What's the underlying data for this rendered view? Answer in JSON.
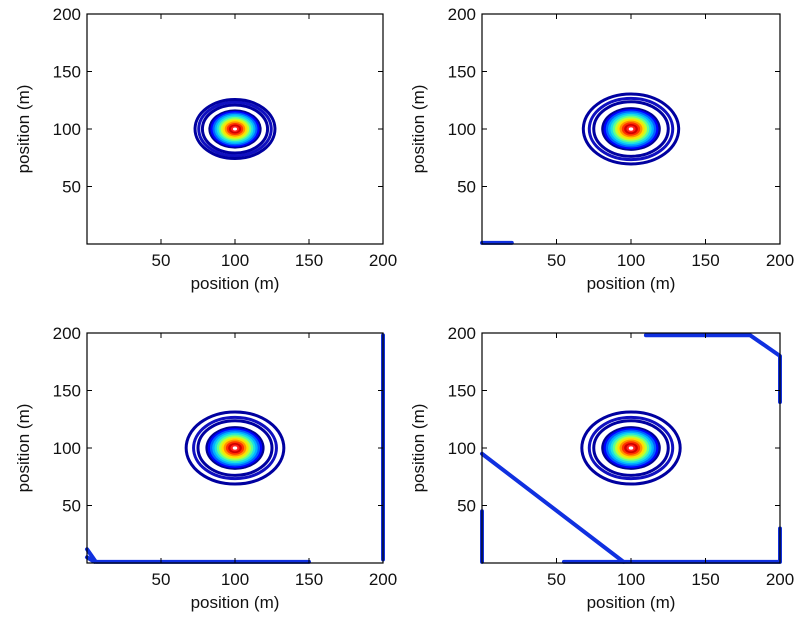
{
  "chart_data": [
    {
      "type": "contour",
      "xlabel": "position (m)",
      "ylabel": "position (m)",
      "xlim": [
        0,
        200
      ],
      "ylim": [
        0,
        200
      ],
      "xticks": [
        50,
        100,
        150,
        200
      ],
      "yticks": [
        50,
        100,
        150,
        200
      ],
      "center": [
        100,
        100
      ],
      "outer_ring_radii": [
        22,
        24.5,
        27
      ],
      "fill_radius": 18,
      "edge_segments": []
    },
    {
      "type": "contour",
      "xlabel": "position (m)",
      "ylabel": "position (m)",
      "xlim": [
        0,
        200
      ],
      "ylim": [
        0,
        200
      ],
      "xticks": [
        50,
        100,
        150,
        200
      ],
      "yticks": [
        50,
        100,
        150,
        200
      ],
      "center": [
        100,
        100
      ],
      "outer_ring_radii": [
        25,
        28,
        32
      ],
      "fill_radius": 20,
      "edge_segments": [
        [
          [
            0,
            1
          ],
          [
            20,
            1
          ]
        ]
      ]
    },
    {
      "type": "contour",
      "xlabel": "position (m)",
      "ylabel": "position (m)",
      "xlim": [
        0,
        200
      ],
      "ylim": [
        0,
        200
      ],
      "xticks": [
        50,
        100,
        150,
        200
      ],
      "yticks": [
        50,
        100,
        150,
        200
      ],
      "center": [
        100,
        100
      ],
      "outer_ring_radii": [
        25,
        28,
        33
      ],
      "fill_radius": 20,
      "edge_segments": [
        [
          [
            0,
            12
          ],
          [
            6,
            1
          ],
          [
            150,
            1
          ]
        ],
        [
          [
            0,
            5
          ],
          [
            5,
            1
          ]
        ],
        [
          [
            200,
            3
          ],
          [
            200,
            198
          ]
        ]
      ]
    },
    {
      "type": "contour",
      "xlabel": "position (m)",
      "ylabel": "position (m)",
      "xlim": [
        0,
        200
      ],
      "ylim": [
        0,
        200
      ],
      "xticks": [
        50,
        100,
        150,
        200
      ],
      "yticks": [
        50,
        100,
        150,
        200
      ],
      "center": [
        100,
        100
      ],
      "outer_ring_radii": [
        25,
        28,
        33
      ],
      "fill_radius": 20,
      "edge_segments": [
        [
          [
            0,
            95
          ],
          [
            95,
            1
          ]
        ],
        [
          [
            55,
            1
          ],
          [
            200,
            1
          ]
        ],
        [
          [
            110,
            198
          ],
          [
            180,
            198
          ],
          [
            200,
            180
          ],
          [
            200,
            140
          ]
        ],
        [
          [
            200,
            30
          ],
          [
            200,
            2
          ]
        ],
        [
          [
            0,
            45
          ],
          [
            0,
            1
          ]
        ]
      ]
    }
  ]
}
